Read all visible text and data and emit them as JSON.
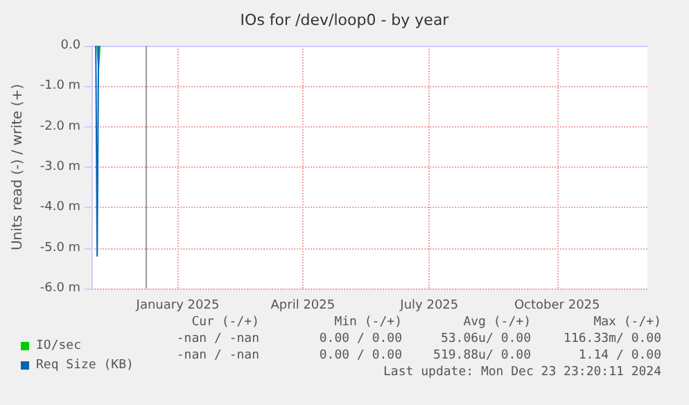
{
  "chart_data": {
    "type": "line",
    "title": "IOs for /dev/loop0 - by year",
    "ylabel": "Units read (-) / write (+)",
    "xlim": [
      "2024-11-14",
      "2025-12-19"
    ],
    "xticks": [
      {
        "value": "2025-01-15",
        "label": "January 2025"
      },
      {
        "value": "2025-04-15",
        "label": "April 2025"
      },
      {
        "value": "2025-07-15",
        "label": "July 2025"
      },
      {
        "value": "2025-10-15",
        "label": "October 2025"
      }
    ],
    "ylim": [
      -6,
      0
    ],
    "yticks": [
      {
        "value": -6,
        "label": "-6.0 m"
      },
      {
        "value": -5,
        "label": "-5.0 m"
      },
      {
        "value": -4,
        "label": "-4.0 m"
      },
      {
        "value": -3,
        "label": "-3.0 m"
      },
      {
        "value": -2,
        "label": "-2.0 m"
      },
      {
        "value": -1,
        "label": "-1.0 m"
      },
      {
        "value": 0,
        "label": "0.0"
      }
    ],
    "grid": true,
    "legend": "bottom left",
    "series": [
      {
        "name": "IO/sec",
        "color": "#00cc00",
        "x": [
          "2024-11-18",
          "2024-11-19",
          "2024-11-20"
        ],
        "values": [
          0,
          -0.55,
          0
        ]
      },
      {
        "name": "Req Size (KB)",
        "color": "#0066b3",
        "x": [
          "2024-11-17",
          "2024-11-18",
          "2024-11-19"
        ],
        "values": [
          0,
          -5.2,
          0
        ]
      }
    ],
    "ref_lines": [
      {
        "axis": "x",
        "value": "2024-12-23",
        "label": null,
        "color": "#999999"
      }
    ],
    "annotations": [
      "Cur (-/+)",
      "Min (-/+)",
      "Avg (-/+)",
      "Max (-/+)",
      "-nan / -nan",
      "0.00 / 0.00",
      "53.06u/ 0.00",
      "116.33m/ 0.00",
      "-nan / -nan",
      "0.00 / 0.00",
      "519.88u/ 0.00",
      "1.14 / 0.00",
      "Last update: Mon Dec 23 23:20:11 2024"
    ]
  }
}
